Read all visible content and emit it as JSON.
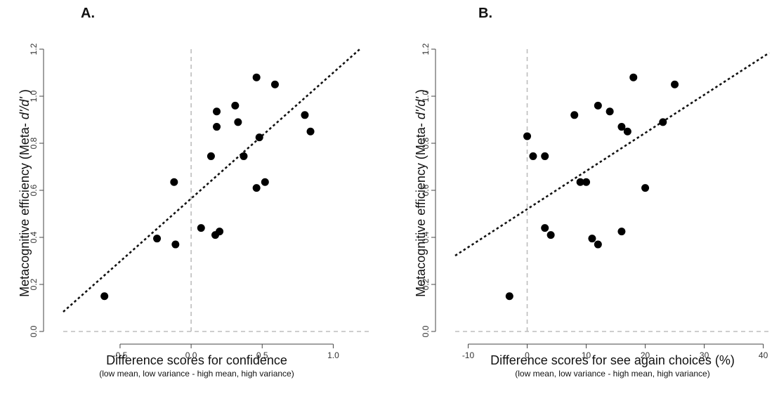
{
  "chart_data": [
    {
      "type": "scatter",
      "panel_label": "A.",
      "xlabel": "Difference scores for confidence",
      "xlabel_sub": "(low mean, low variance - high mean, high variance)",
      "ylabel_prefix": "Metacognitive efficiency (Meta- ",
      "ylabel_italic": "d'/d'",
      "ylabel_suffix": " )",
      "xlim": [
        -0.9,
        1.25
      ],
      "ylim": [
        0.0,
        1.2
      ],
      "x_ticks": [
        -0.5,
        0.0,
        0.5,
        1.0
      ],
      "x_tick_labels": [
        "-0.5",
        "0.0",
        "0.5",
        "1.0"
      ],
      "y_ticks": [
        0.0,
        0.2,
        0.4,
        0.6,
        0.8,
        1.0,
        1.2
      ],
      "y_tick_labels": [
        "0.0",
        "0.2",
        "0.4",
        "0.6",
        "0.8",
        "1.0",
        "1.2"
      ],
      "x_reference_line": 0.0,
      "y_reference_line": 0.0,
      "trend_line": {
        "slope": 0.535,
        "intercept": 0.565
      },
      "grid": false,
      "points": [
        {
          "x": -0.61,
          "y": 0.15
        },
        {
          "x": -0.24,
          "y": 0.395
        },
        {
          "x": -0.12,
          "y": 0.635
        },
        {
          "x": -0.11,
          "y": 0.37
        },
        {
          "x": 0.07,
          "y": 0.44
        },
        {
          "x": 0.14,
          "y": 0.745
        },
        {
          "x": 0.17,
          "y": 0.41
        },
        {
          "x": 0.18,
          "y": 0.87
        },
        {
          "x": 0.18,
          "y": 0.935
        },
        {
          "x": 0.2,
          "y": 0.425
        },
        {
          "x": 0.31,
          "y": 0.96
        },
        {
          "x": 0.33,
          "y": 0.89
        },
        {
          "x": 0.37,
          "y": 0.745
        },
        {
          "x": 0.46,
          "y": 0.61
        },
        {
          "x": 0.46,
          "y": 1.08
        },
        {
          "x": 0.48,
          "y": 0.825
        },
        {
          "x": 0.52,
          "y": 0.635
        },
        {
          "x": 0.59,
          "y": 1.05
        },
        {
          "x": 0.8,
          "y": 0.92
        },
        {
          "x": 0.84,
          "y": 0.85
        }
      ]
    },
    {
      "type": "scatter",
      "panel_label": "B.",
      "xlabel": "Difference scores for see again choices (%)",
      "xlabel_sub": "(low mean, low variance - high mean, high variance)",
      "ylabel_prefix": "Metacognitive efficiency (Meta- ",
      "ylabel_italic": "d'/d'",
      "ylabel_suffix": " )",
      "xlim": [
        -12.2,
        41.0
      ],
      "ylim": [
        0.0,
        1.2
      ],
      "x_ticks": [
        -10,
        0,
        10,
        20,
        30,
        40
      ],
      "x_tick_labels": [
        "-10",
        "0",
        "10",
        "20",
        "30",
        "40"
      ],
      "y_ticks": [
        0.0,
        0.2,
        0.4,
        0.6,
        0.8,
        1.0,
        1.2
      ],
      "y_tick_labels": [
        "0.0",
        "0.2",
        "0.4",
        "0.6",
        "0.8",
        "1.0",
        "1.2"
      ],
      "x_reference_line": 0,
      "y_reference_line": 0.0,
      "trend_line": {
        "slope": 0.0162,
        "intercept": 0.52
      },
      "grid": false,
      "points": [
        {
          "x": -3,
          "y": 0.15
        },
        {
          "x": 0,
          "y": 0.83
        },
        {
          "x": 1,
          "y": 0.745
        },
        {
          "x": 3,
          "y": 0.745
        },
        {
          "x": 3,
          "y": 0.44
        },
        {
          "x": 4,
          "y": 0.41
        },
        {
          "x": 8,
          "y": 0.92
        },
        {
          "x": 9,
          "y": 0.635
        },
        {
          "x": 10,
          "y": 0.635
        },
        {
          "x": 11,
          "y": 0.395
        },
        {
          "x": 12,
          "y": 0.37
        },
        {
          "x": 12,
          "y": 0.96
        },
        {
          "x": 14,
          "y": 0.935
        },
        {
          "x": 16,
          "y": 0.87
        },
        {
          "x": 16,
          "y": 0.425
        },
        {
          "x": 17,
          "y": 0.85
        },
        {
          "x": 18,
          "y": 1.08
        },
        {
          "x": 20,
          "y": 0.61
        },
        {
          "x": 23,
          "y": 0.89
        },
        {
          "x": 25,
          "y": 1.05
        }
      ]
    }
  ]
}
